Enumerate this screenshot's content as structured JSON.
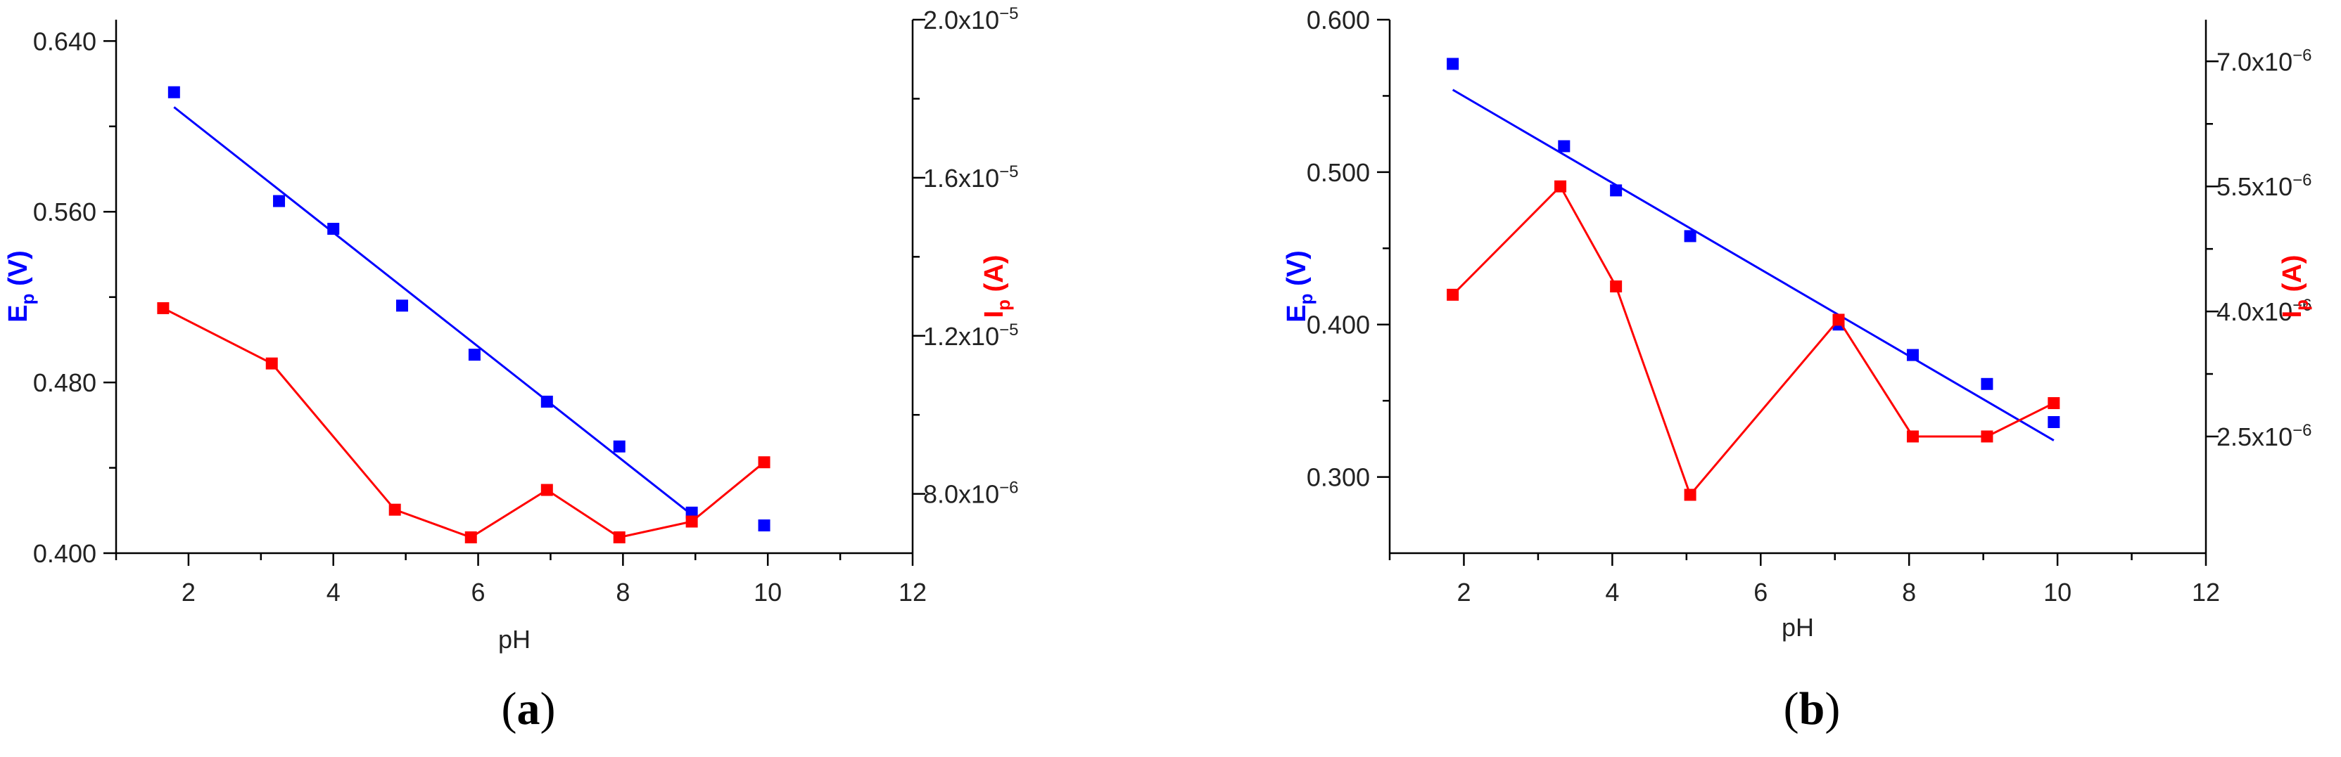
{
  "chart_data": [
    {
      "panel_label": {
        "open": "(",
        "letter": "a",
        "close": ")"
      },
      "type": "scatter",
      "xlabel": "pH",
      "xlim": [
        1,
        12
      ],
      "x_ticks": [
        "2",
        "4",
        "6",
        "8",
        "10",
        "12"
      ],
      "y_left": {
        "label_main": "E",
        "label_sub": "p",
        "label_unit": " (V)",
        "color": "#0000ff",
        "lim": [
          0.4,
          0.65
        ],
        "ticks": [
          {
            "value": 0.64,
            "label": "0.640"
          },
          {
            "value": 0.56,
            "label": "0.560"
          },
          {
            "value": 0.48,
            "label": "0.480"
          },
          {
            "value": 0.4,
            "label": "0.400"
          }
        ]
      },
      "y_right": {
        "label_main": "I",
        "label_sub": "p",
        "label_unit": " (A)",
        "color": "#ff0000",
        "lim": [
          6.5e-06,
          2e-05
        ],
        "ticks": [
          {
            "value": 8e-06,
            "mant": "8.0x10",
            "exp": "−6"
          },
          {
            "value": 1.2e-05,
            "mant": "1.2x10",
            "exp": "−5"
          },
          {
            "value": 1.6e-05,
            "mant": "1.6x10",
            "exp": "−5"
          },
          {
            "value": 2e-05,
            "mant": "2.0x10",
            "exp": "−5"
          }
        ]
      },
      "series": [
        {
          "axis": "left",
          "color": "#0000ff",
          "style": "markers",
          "x": [
            1.8,
            3.25,
            4.0,
            4.95,
            5.95,
            6.95,
            7.95,
            8.95,
            9.95
          ],
          "y": [
            0.616,
            0.565,
            0.552,
            0.516,
            0.493,
            0.471,
            0.45,
            0.419,
            0.413
          ]
        },
        {
          "axis": "left",
          "color": "#0000ff",
          "style": "fit-line",
          "x": [
            1.8,
            8.95
          ],
          "y": [
            0.609,
            0.418
          ]
        },
        {
          "axis": "right",
          "color": "#ff0000",
          "style": "line-markers",
          "x": [
            1.65,
            3.15,
            4.85,
            5.9,
            6.95,
            7.95,
            8.95,
            9.95
          ],
          "y": [
            1.27e-05,
            1.13e-05,
            7.6e-06,
            6.9e-06,
            8.1e-06,
            6.9e-06,
            7.3e-06,
            8.8e-06
          ]
        }
      ]
    },
    {
      "panel_label": {
        "open": "(",
        "letter": "b",
        "close": ")"
      },
      "type": "scatter",
      "xlabel": "pH",
      "xlim": [
        1,
        12
      ],
      "x_ticks": [
        "2",
        "4",
        "6",
        "8",
        "10",
        "12"
      ],
      "y_left": {
        "label_main": "E",
        "label_sub": "p",
        "label_unit": " (V)",
        "color": "#0000ff",
        "lim": [
          0.25,
          0.6
        ],
        "ticks": [
          {
            "value": 0.6,
            "label": "0.600"
          },
          {
            "value": 0.5,
            "label": "0.500"
          },
          {
            "value": 0.4,
            "label": "0.400"
          },
          {
            "value": 0.3,
            "label": "0.300"
          }
        ]
      },
      "y_right": {
        "label_main": "I",
        "label_sub": "p",
        "label_unit": " (A)",
        "color": "#ff0000",
        "lim": [
          1.1e-06,
          7.5e-06
        ],
        "ticks": [
          {
            "value": 2.5e-06,
            "mant": "2.5x10",
            "exp": "−6"
          },
          {
            "value": 4e-06,
            "mant": "4.0x10",
            "exp": "−6"
          },
          {
            "value": 5.5e-06,
            "mant": "5.5x10",
            "exp": "−6"
          },
          {
            "value": 7e-06,
            "mant": "7.0x10",
            "exp": "−6"
          }
        ]
      },
      "series": [
        {
          "axis": "left",
          "color": "#0000ff",
          "style": "markers",
          "x": [
            1.85,
            3.35,
            4.05,
            5.05,
            7.05,
            8.05,
            9.05,
            9.95
          ],
          "y": [
            0.571,
            0.517,
            0.488,
            0.458,
            0.4,
            0.38,
            0.361,
            0.336
          ]
        },
        {
          "axis": "left",
          "color": "#0000ff",
          "style": "fit-line",
          "x": [
            1.85,
            9.95
          ],
          "y": [
            0.554,
            0.324
          ]
        },
        {
          "axis": "right",
          "color": "#ff0000",
          "style": "line-markers",
          "x": [
            1.85,
            3.3,
            4.05,
            5.05,
            7.05,
            8.05,
            9.05,
            9.95
          ],
          "y": [
            4.2e-06,
            5.5e-06,
            4.3e-06,
            1.8e-06,
            3.9e-06,
            2.5e-06,
            2.5e-06,
            2.9e-06
          ]
        }
      ]
    }
  ]
}
